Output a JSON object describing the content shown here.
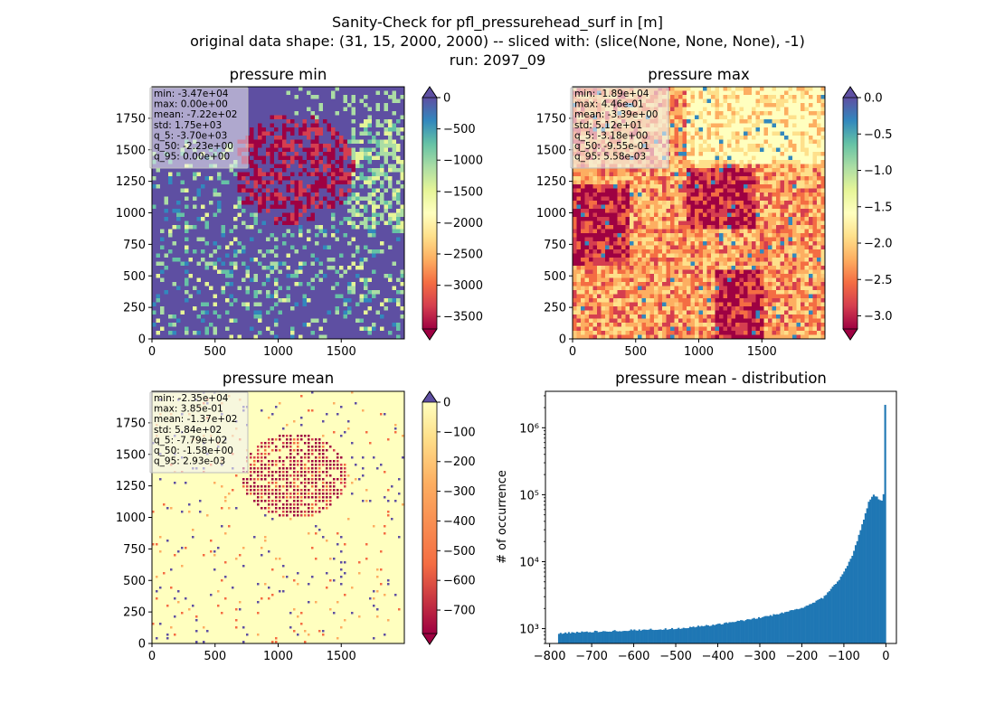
{
  "figure": {
    "title_lines": [
      "Sanity-Check for pfl_pressurehead_surf in [m]",
      "original data shape: (31, 15, 2000, 2000) -- sliced with: (slice(None, None, None), -1)",
      "run: 2097_09"
    ]
  },
  "chart_data": [
    {
      "type": "heatmap",
      "title": "pressure min",
      "colormap": "Spectral",
      "xlim": [
        0,
        2000
      ],
      "ylim": [
        0,
        2000
      ],
      "xticks": [
        "0",
        "500",
        "1000",
        "1500"
      ],
      "yticks": [
        "0",
        "250",
        "500",
        "750",
        "1000",
        "1250",
        "1500",
        "1750"
      ],
      "colorbar": {
        "range": [
          -3700,
          0
        ],
        "ticks": [
          "0",
          "−500",
          "−1000",
          "−1500",
          "−2000",
          "−2500",
          "−3000",
          "−3500"
        ],
        "extend": "both",
        "under_color": "#5e4fa2",
        "over_color": "#5e4fa2"
      },
      "stats": [
        "min: -3.47e+04",
        "max: 0.00e+00",
        "mean: -7.22e+02",
        "std: 1.75e+03",
        "q_5: -3.70e+03",
        "q_50: -2.23e+00",
        "q_95: 0.00e+00"
      ]
    },
    {
      "type": "heatmap",
      "title": "pressure max",
      "colormap": "Spectral",
      "xlim": [
        0,
        2000
      ],
      "ylim": [
        0,
        2000
      ],
      "xticks": [
        "0",
        "500",
        "1000",
        "1500"
      ],
      "yticks": [
        "0",
        "250",
        "500",
        "750",
        "1000",
        "1250",
        "1500",
        "1750"
      ],
      "colorbar": {
        "range": [
          -3.18,
          0.0
        ],
        "ticks": [
          "0.0",
          "−0.5",
          "−1.0",
          "−1.5",
          "−2.0",
          "−2.5",
          "−3.0"
        ],
        "extend": "both",
        "under_color": "#5e4fa2",
        "over_color": "#5e4fa2"
      },
      "stats": [
        "min: -1.89e+04",
        "max: 4.46e-01",
        "mean: -3.39e+00",
        "std: 5.12e+01",
        "q_5: -3.18e+00",
        "q_50: -9.55e-01",
        "q_95: 5.58e-03"
      ]
    },
    {
      "type": "heatmap",
      "title": "pressure mean",
      "colormap": "Spectral",
      "xlim": [
        0,
        2000
      ],
      "ylim": [
        0,
        2000
      ],
      "xticks": [
        "0",
        "500",
        "1000",
        "1500"
      ],
      "yticks": [
        "0",
        "250",
        "500",
        "750",
        "1000",
        "1250",
        "1500",
        "1750"
      ],
      "colorbar": {
        "range": [
          -779,
          0
        ],
        "ticks": [
          "0",
          "−100",
          "−200",
          "−300",
          "−400",
          "−500",
          "−600",
          "−700"
        ],
        "extend": "both",
        "under_color": "#5e4fa2",
        "over_color": "#5e4fa2"
      },
      "stats": [
        "min: -2.35e+04",
        "max: 3.85e-01",
        "mean: -1.37e+02",
        "std: 5.84e+02",
        "q_5: -7.79e+02",
        "q_50: -1.58e+00",
        "q_95: 2.93e-03"
      ]
    },
    {
      "type": "bar",
      "title": "pressure mean - distribution",
      "ylabel": "# of occurrence",
      "yscale": "log",
      "xlim": [
        -810,
        25
      ],
      "ylim": [
        600,
        3500000
      ],
      "xticks": [
        "−800",
        "−700",
        "−600",
        "−500",
        "−400",
        "−300",
        "−200",
        "−100",
        "0"
      ],
      "yticks": [
        "10³",
        "10⁴",
        "10⁵",
        "10⁶"
      ],
      "color": "#1f77b4",
      "bin_range": [
        -780,
        0
      ],
      "bin_count": 200,
      "anchors": [
        [
          -780,
          850
        ],
        [
          -700,
          900
        ],
        [
          -600,
          950
        ],
        [
          -500,
          1000
        ],
        [
          -400,
          1150
        ],
        [
          -300,
          1450
        ],
        [
          -200,
          2000
        ],
        [
          -150,
          2900
        ],
        [
          -110,
          5500
        ],
        [
          -80,
          12000
        ],
        [
          -60,
          30000
        ],
        [
          -40,
          80000
        ],
        [
          -30,
          100000
        ],
        [
          -20,
          90000
        ],
        [
          -10,
          80000
        ],
        [
          -5,
          110000
        ],
        [
          0,
          2200000
        ]
      ]
    }
  ]
}
